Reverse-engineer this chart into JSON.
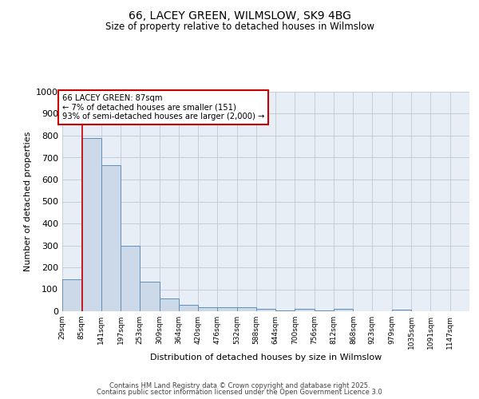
{
  "title": "66, LACEY GREEN, WILMSLOW, SK9 4BG",
  "subtitle": "Size of property relative to detached houses in Wilmslow",
  "xlabel": "Distribution of detached houses by size in Wilmslow",
  "ylabel": "Number of detached properties",
  "bar_color": "#ccd9e8",
  "bar_edge_color": "#6090b8",
  "bar_heights": [
    145,
    790,
    665,
    298,
    135,
    57,
    30,
    18,
    17,
    17,
    12,
    5,
    10,
    5,
    10,
    0,
    0,
    8,
    0,
    0,
    0
  ],
  "bin_edges": [
    29,
    85,
    141,
    197,
    253,
    309,
    364,
    420,
    476,
    532,
    588,
    644,
    700,
    756,
    812,
    868,
    923,
    979,
    1035,
    1091,
    1147,
    1203
  ],
  "x_tick_labels": [
    "29sqm",
    "85sqm",
    "141sqm",
    "197sqm",
    "253sqm",
    "309sqm",
    "364sqm",
    "420sqm",
    "476sqm",
    "532sqm",
    "588sqm",
    "644sqm",
    "700sqm",
    "756sqm",
    "812sqm",
    "868sqm",
    "923sqm",
    "979sqm",
    "1035sqm",
    "1091sqm",
    "1147sqm"
  ],
  "ylim": [
    0,
    1000
  ],
  "yticks": [
    0,
    100,
    200,
    300,
    400,
    500,
    600,
    700,
    800,
    900,
    1000
  ],
  "property_size": 87,
  "red_line_color": "#cc0000",
  "annotation_line1": "66 LACEY GREEN: 87sqm",
  "annotation_line2": "← 7% of detached houses are smaller (151)",
  "annotation_line3": "93% of semi-detached houses are larger (2,000) →",
  "annotation_box_color": "#ffffff",
  "annotation_box_edge_color": "#cc0000",
  "plot_bg_color": "#e8eef5",
  "grid_color": "#c0c8d8",
  "background_color": "#ffffff",
  "footer_line1": "Contains HM Land Registry data © Crown copyright and database right 2025.",
  "footer_line2": "Contains public sector information licensed under the Open Government Licence 3.0"
}
